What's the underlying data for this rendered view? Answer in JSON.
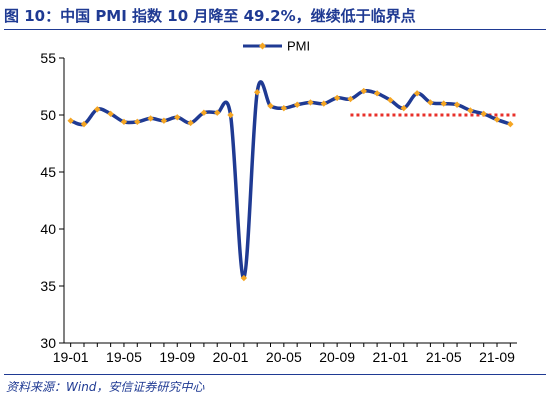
{
  "title": "图 10：中国 PMI 指数 10 月降至 49.2%，继续低于临界点",
  "source": "资料来源：Wind，安信证券研究中心",
  "colors": {
    "series": "#1f3a93",
    "marker": "#f5a623",
    "threshold": "#e8302a",
    "title": "#1f3a93"
  },
  "chart_data": {
    "type": "line",
    "x": [
      "19-01",
      "19-02",
      "19-03",
      "19-04",
      "19-05",
      "19-06",
      "19-07",
      "19-08",
      "19-09",
      "19-10",
      "19-11",
      "19-12",
      "20-01",
      "20-02",
      "20-03",
      "20-04",
      "20-05",
      "20-06",
      "20-07",
      "20-08",
      "20-09",
      "20-10",
      "20-11",
      "20-12",
      "21-01",
      "21-02",
      "21-03",
      "21-04",
      "21-05",
      "21-06",
      "21-07",
      "21-08",
      "21-09",
      "21-10"
    ],
    "x_tick_labels": [
      "19-01",
      "19-05",
      "19-09",
      "20-01",
      "20-05",
      "20-09",
      "21-01",
      "21-05",
      "21-09"
    ],
    "series": [
      {
        "name": "PMI",
        "values": [
          49.5,
          49.2,
          50.5,
          50.1,
          49.4,
          49.4,
          49.7,
          49.5,
          49.8,
          49.3,
          50.2,
          50.2,
          50.0,
          35.7,
          52.0,
          50.8,
          50.6,
          50.9,
          51.1,
          51.0,
          51.5,
          51.4,
          52.1,
          51.9,
          51.3,
          50.6,
          51.9,
          51.1,
          51.0,
          50.9,
          50.4,
          50.1,
          49.6,
          49.2
        ]
      }
    ],
    "threshold": {
      "value": 50,
      "from": "20-10",
      "to": "21-10"
    },
    "ylim": [
      30,
      55
    ],
    "yticks": [
      30,
      35,
      40,
      45,
      50,
      55
    ],
    "legend": {
      "position": "top-center"
    },
    "grid": false
  }
}
